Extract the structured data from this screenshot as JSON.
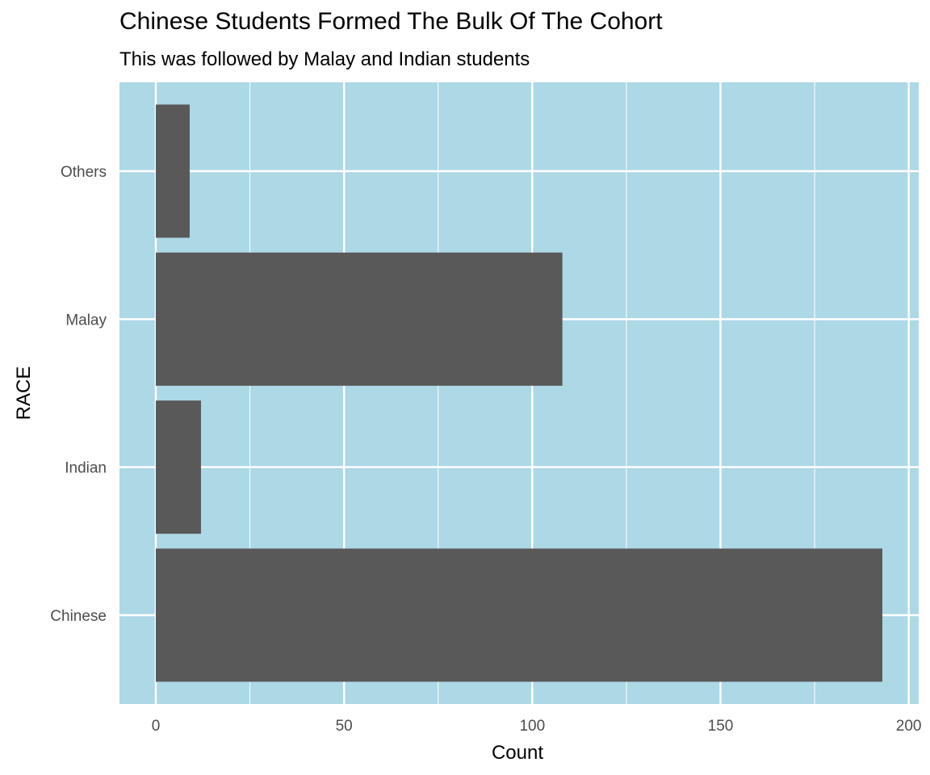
{
  "chart_data": {
    "type": "bar",
    "orientation": "horizontal",
    "title": "Chinese Students Formed The Bulk Of The Cohort",
    "subtitle": "This was followed by Malay and Indian students",
    "xlabel": "Count",
    "ylabel": "RACE",
    "categories": [
      "Chinese",
      "Indian",
      "Malay",
      "Others"
    ],
    "values": [
      193,
      12,
      108,
      9
    ],
    "xlim": [
      -9.65,
      202.65
    ],
    "x_ticks": [
      "0",
      "50",
      "100",
      "150",
      "200"
    ],
    "grid": true,
    "colors": {
      "panel_background": "#add8e6",
      "bar_fill": "#595959",
      "grid_line": "#ffffff",
      "tick_text": "#4d4d4d",
      "label_text": "#000000"
    }
  }
}
